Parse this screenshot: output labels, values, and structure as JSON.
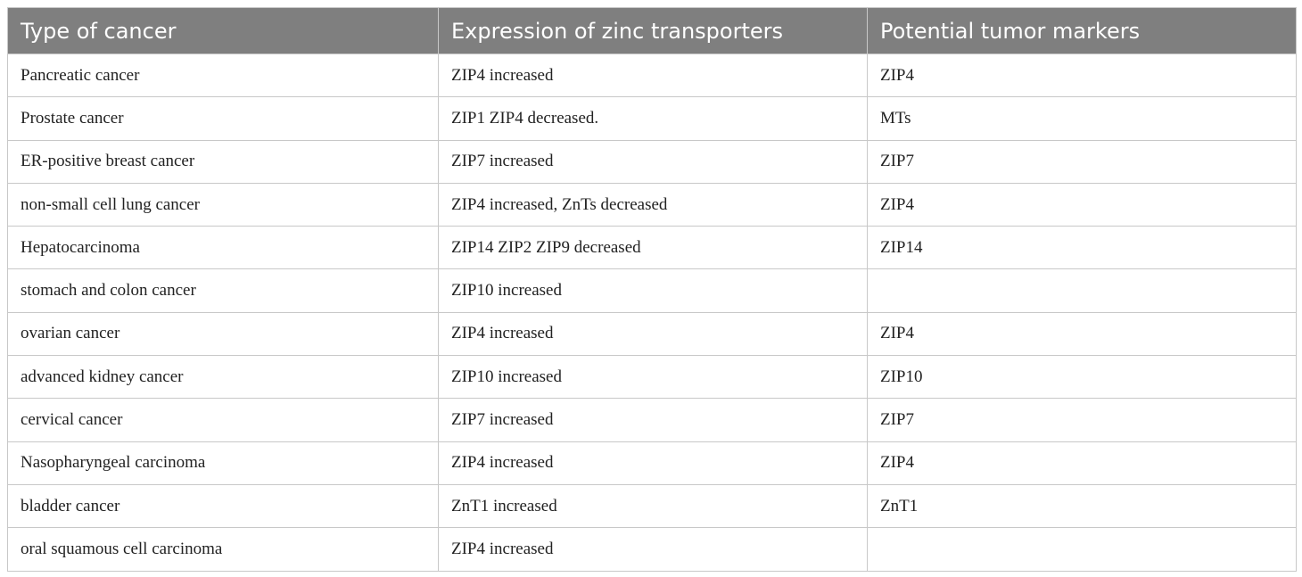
{
  "table": {
    "header": [
      "Type of cancer",
      "Expression of zinc transporters",
      "Potential tumor markers"
    ],
    "rows": [
      [
        "Pancreatic cancer",
        "ZIP4 increased",
        "ZIP4"
      ],
      [
        "Prostate cancer",
        "ZIP1 ZIP4 decreased.",
        "MTs"
      ],
      [
        "ER-positive breast cancer",
        "ZIP7 increased",
        "ZIP7"
      ],
      [
        "non-small cell lung cancer",
        "ZIP4 increased, ZnTs decreased",
        "ZIP4"
      ],
      [
        "Hepatocarcinoma",
        "ZIP14 ZIP2 ZIP9 decreased",
        "ZIP14"
      ],
      [
        "stomach and colon cancer",
        "ZIP10 increased"
      ],
      [
        "ovarian cancer",
        "ZIP4 increased",
        "ZIP4"
      ],
      [
        "advanced kidney cancer",
        "ZIP10 increased",
        "ZIP10"
      ],
      [
        "cervical cancer",
        "ZIP7 increased",
        "ZIP7"
      ],
      [
        "Nasopharyngeal carcinoma",
        "ZIP4 increased",
        "ZIP4"
      ],
      [
        "bladder cancer",
        "ZnT1 increased",
        "ZnT1"
      ],
      [
        "oral squamous cell carcinoma",
        "ZIP4 increased"
      ]
    ]
  }
}
